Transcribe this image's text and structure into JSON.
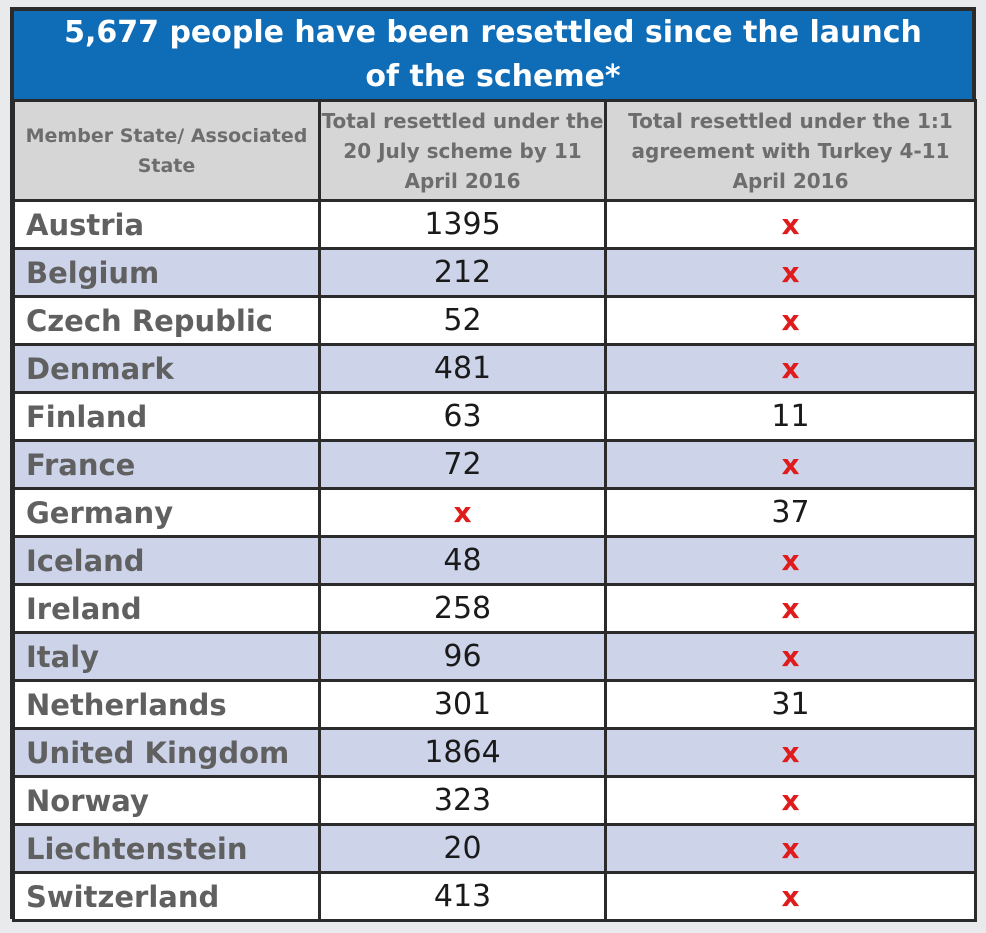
{
  "title": "5,677 people have been resettled since the launch of the scheme*",
  "headers": {
    "col1": "Member State/ Associated State",
    "col2": "Total resettled under the 20 July scheme by 11 April 2016",
    "col3": "Total resettled under the 1:1 agreement with Turkey 4-11 April 2016"
  },
  "rows": [
    {
      "state": "Austria",
      "july": "1395",
      "turkey": "x"
    },
    {
      "state": "Belgium",
      "july": "212",
      "turkey": "x"
    },
    {
      "state": "Czech Republic",
      "july": "52",
      "turkey": "x"
    },
    {
      "state": "Denmark",
      "july": "481",
      "turkey": "x"
    },
    {
      "state": "Finland",
      "july": "63",
      "turkey": "11"
    },
    {
      "state": "France",
      "july": "72",
      "turkey": "x"
    },
    {
      "state": "Germany",
      "july": "x",
      "turkey": "37"
    },
    {
      "state": "Iceland",
      "july": "48",
      "turkey": "x"
    },
    {
      "state": "Ireland",
      "july": "258",
      "turkey": "x"
    },
    {
      "state": "Italy",
      "july": "96",
      "turkey": "x"
    },
    {
      "state": "Netherlands",
      "july": "301",
      "turkey": "31"
    },
    {
      "state": "United Kingdom",
      "july": "1864",
      "turkey": "x"
    },
    {
      "state": "Norway",
      "july": "323",
      "turkey": "x"
    },
    {
      "state": "Liechtenstein",
      "july": "20",
      "turkey": "x"
    },
    {
      "state": "Switzerland",
      "july": "413",
      "turkey": "x"
    }
  ],
  "colors": {
    "title_bg": "#0f6db8",
    "header_bg": "#d6d6d6",
    "row_alt_bg": "#cdd4ea",
    "x_mark": "#e01b1b"
  }
}
